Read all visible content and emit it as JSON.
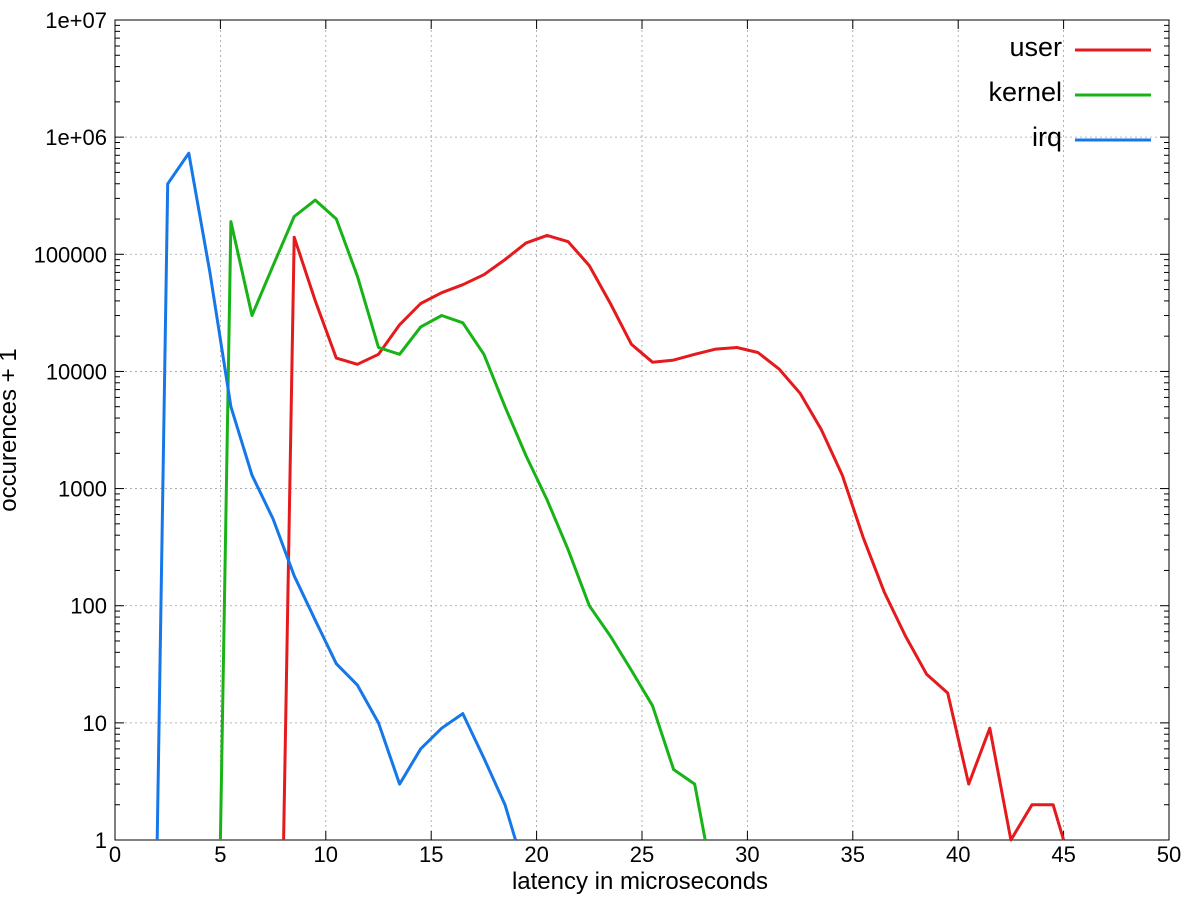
{
  "chart_data": {
    "type": "line",
    "xlabel": "latency in microseconds",
    "ylabel": "occurences + 1",
    "yscale": "log",
    "xlim": [
      0,
      50
    ],
    "ylim": [
      1,
      10000000
    ],
    "grid": true,
    "legend_position": "top-right",
    "x_ticks": [
      "0",
      "5",
      "10",
      "15",
      "20",
      "25",
      "30",
      "35",
      "40",
      "45",
      "50"
    ],
    "y_ticks": [
      "1",
      "10",
      "100",
      "1000",
      "10000",
      "100000",
      "1e+06",
      "1e+07"
    ],
    "series": [
      {
        "name": "user",
        "color": "#e41a1c",
        "points": [
          [
            8,
            1
          ],
          [
            8.5,
            140000
          ],
          [
            9.5,
            40000
          ],
          [
            10.5,
            13000
          ],
          [
            11.5,
            11500
          ],
          [
            12.5,
            14000
          ],
          [
            13.5,
            25000
          ],
          [
            14.5,
            38000
          ],
          [
            15.5,
            47000
          ],
          [
            16.5,
            55000
          ],
          [
            17.5,
            67000
          ],
          [
            18.5,
            90000
          ],
          [
            19.5,
            125000
          ],
          [
            20.5,
            145000
          ],
          [
            21.5,
            128000
          ],
          [
            22.5,
            80000
          ],
          [
            23.5,
            38000
          ],
          [
            24.5,
            17000
          ],
          [
            25.5,
            12000
          ],
          [
            26.5,
            12500
          ],
          [
            27.5,
            14000
          ],
          [
            28.5,
            15500
          ],
          [
            29.5,
            16000
          ],
          [
            30.5,
            14500
          ],
          [
            31.5,
            10500
          ],
          [
            32.5,
            6500
          ],
          [
            33.5,
            3200
          ],
          [
            34.5,
            1300
          ],
          [
            35.5,
            380
          ],
          [
            36.5,
            130
          ],
          [
            37.5,
            55
          ],
          [
            38.5,
            26
          ],
          [
            39.5,
            18
          ],
          [
            40.5,
            3
          ],
          [
            41.5,
            9
          ],
          [
            42.5,
            1
          ],
          [
            43.5,
            2
          ],
          [
            44.5,
            2
          ],
          [
            45,
            1
          ]
        ]
      },
      {
        "name": "kernel",
        "color": "#17b317",
        "points": [
          [
            5,
            1
          ],
          [
            5.5,
            190000
          ],
          [
            6.5,
            30000
          ],
          [
            7.5,
            80000
          ],
          [
            8.5,
            210000
          ],
          [
            9.5,
            290000
          ],
          [
            10.5,
            200000
          ],
          [
            11.5,
            65000
          ],
          [
            12.5,
            16000
          ],
          [
            13.5,
            14000
          ],
          [
            14.5,
            24000
          ],
          [
            15.5,
            30000
          ],
          [
            16.5,
            26000
          ],
          [
            17.5,
            14000
          ],
          [
            18.5,
            5000
          ],
          [
            19.5,
            1900
          ],
          [
            20.5,
            800
          ],
          [
            21.5,
            300
          ],
          [
            22.5,
            100
          ],
          [
            23.5,
            55
          ],
          [
            24.5,
            28
          ],
          [
            25.5,
            14
          ],
          [
            26.5,
            4
          ],
          [
            27.5,
            3
          ],
          [
            28,
            1
          ]
        ]
      },
      {
        "name": "irq",
        "color": "#1577e8",
        "points": [
          [
            2,
            1
          ],
          [
            2.5,
            400000
          ],
          [
            3.5,
            730000
          ],
          [
            4.5,
            70000
          ],
          [
            5.5,
            5000
          ],
          [
            6.5,
            1300
          ],
          [
            7.5,
            550
          ],
          [
            8.5,
            180
          ],
          [
            9.5,
            75
          ],
          [
            10.5,
            32
          ],
          [
            11.5,
            21
          ],
          [
            12.5,
            10
          ],
          [
            13.5,
            3
          ],
          [
            14.5,
            6
          ],
          [
            15.5,
            9
          ],
          [
            16.5,
            12
          ],
          [
            17.5,
            5
          ],
          [
            18.5,
            2
          ],
          [
            19,
            1
          ]
        ]
      }
    ]
  }
}
